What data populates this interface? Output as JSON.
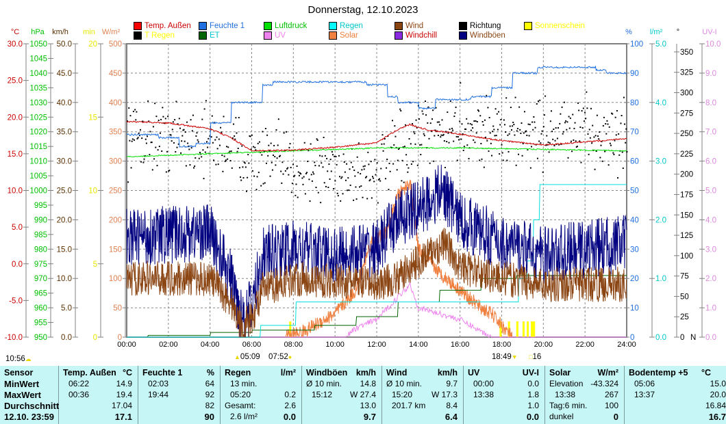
{
  "title": "Donnerstag, 12.10.2023",
  "legend": [
    {
      "label": "Temp. Außen",
      "swatch": "#ff0000",
      "text": "#cc0000"
    },
    {
      "label": "T Regen",
      "swatch": "#000000",
      "text": "#ffff00"
    },
    {
      "label": "Feuchte 1",
      "swatch": "#1f6fe0",
      "text": "#1f6fe0"
    },
    {
      "label": "ET",
      "swatch": "#006400",
      "text": "#00c8c8"
    },
    {
      "label": "Luftdruck",
      "swatch": "#00e000",
      "text": "#00c000"
    },
    {
      "label": "UV",
      "swatch": "#ee82ee",
      "text": "#ee82ee"
    },
    {
      "label": "Regen",
      "swatch": "#00ffff",
      "text": "#00c8c8"
    },
    {
      "label": "Solar",
      "swatch": "#f08040",
      "text": "#f08040"
    },
    {
      "label": "Wind",
      "swatch": "#8b4513",
      "text": "#8b4513"
    },
    {
      "label": "Windchill",
      "swatch": "#8a2be2",
      "text": "#cc0000"
    },
    {
      "label": "Richtung",
      "swatch": "#000000",
      "text": "#000000"
    },
    {
      "label": "Windböen",
      "swatch": "#000080",
      "text": "#8b4513"
    },
    {
      "label": "Sonnenschein",
      "swatch": "#ffff00",
      "text": "#ffff00"
    }
  ],
  "chart_data": {
    "type": "line",
    "title": "Donnerstag, 12.10.2023",
    "x_range_hours": [
      0,
      24
    ],
    "x_ticks": [
      "00:00",
      "02:00",
      "04:00",
      "06:00",
      "08:00",
      "10:00",
      "12:00",
      "14:00",
      "16:00",
      "18:00",
      "20:00",
      "22:00",
      "24:00"
    ],
    "axes": [
      {
        "id": "temp",
        "unit": "°C",
        "min": -10,
        "max": 30,
        "step": 5,
        "dec": 1,
        "color": "#cc0000",
        "side": "left"
      },
      {
        "id": "hpa",
        "unit": "hPa",
        "min": 950,
        "max": 1050,
        "step": 5,
        "dec": 0,
        "color": "#00c000",
        "side": "left"
      },
      {
        "id": "kmh",
        "unit": "km/h",
        "min": 0,
        "max": 50,
        "step": 5,
        "dec": 1,
        "color": "#5a3000",
        "side": "left"
      },
      {
        "id": "min",
        "unit": "min",
        "min": 0,
        "max": 20,
        "step": 5,
        "dec": 0,
        "color": "#e8e800",
        "side": "left"
      },
      {
        "id": "wm2",
        "unit": "W/m²",
        "min": 0,
        "max": 500,
        "step": 50,
        "dec": 0,
        "color": "#e08050",
        "side": "left"
      },
      {
        "id": "pct",
        "unit": "%",
        "min": 0,
        "max": 100,
        "step": 10,
        "dec": 0,
        "color": "#1f6fe0",
        "side": "right"
      },
      {
        "id": "lm2",
        "unit": "l/m²",
        "min": 0,
        "max": 5,
        "step": 1,
        "dec": 1,
        "color": "#00c8c8",
        "side": "right"
      },
      {
        "id": "deg",
        "unit": "°",
        "min": 0,
        "max": 360,
        "step": 25,
        "dec": 0,
        "color": "#000000",
        "side": "right",
        "tick_max": 350,
        "extra": "N"
      },
      {
        "id": "uv",
        "unit": "UV-I",
        "min": 0,
        "max": 10,
        "step": 1,
        "dec": 1,
        "color": "#dd88dd",
        "side": "right"
      }
    ],
    "series": [
      {
        "name": "Temp. Außen",
        "axis": "temp",
        "color": "#cc0000",
        "noise": 0.1,
        "points": [
          [
            0,
            19.4
          ],
          [
            2,
            19.2
          ],
          [
            4,
            18.4
          ],
          [
            5,
            17.2
          ],
          [
            6,
            15.4
          ],
          [
            8,
            15.5
          ],
          [
            10,
            15.9
          ],
          [
            12,
            16.5
          ],
          [
            13,
            18.3
          ],
          [
            13.6,
            19.0
          ],
          [
            14.5,
            18.2
          ],
          [
            15.5,
            17.9
          ],
          [
            17,
            17.2
          ],
          [
            18,
            16.8
          ],
          [
            20,
            16.2
          ],
          [
            22,
            16.6
          ],
          [
            24,
            17.1
          ]
        ]
      },
      {
        "name": "Luftdruck",
        "axis": "hpa",
        "color": "#00e000",
        "noise": 0.2,
        "points": [
          [
            0,
            1011.5
          ],
          [
            4,
            1012.5
          ],
          [
            8,
            1013.5
          ],
          [
            12,
            1014.5
          ],
          [
            16,
            1014.5
          ],
          [
            20,
            1014
          ],
          [
            24,
            1013.5
          ]
        ]
      },
      {
        "name": "Feuchte 1",
        "axis": "pct",
        "color": "#1f6fe0",
        "noise": 0.3,
        "step": true,
        "points": [
          [
            0,
            69
          ],
          [
            1.5,
            68
          ],
          [
            2.5,
            65
          ],
          [
            3.3,
            66
          ],
          [
            4,
            73
          ],
          [
            5,
            80
          ],
          [
            6.5,
            86
          ],
          [
            7,
            87
          ],
          [
            11.5,
            86
          ],
          [
            12.5,
            82
          ],
          [
            13,
            80
          ],
          [
            14,
            78
          ],
          [
            14.8,
            81
          ],
          [
            16.5,
            82
          ],
          [
            17.5,
            85
          ],
          [
            18.5,
            90
          ],
          [
            19.7,
            92
          ],
          [
            22.5,
            91
          ],
          [
            23,
            90
          ],
          [
            24,
            90
          ]
        ]
      },
      {
        "name": "Regen",
        "axis": "lm2",
        "color": "#00e0e0",
        "noise": 0,
        "step": true,
        "points": [
          [
            0,
            0
          ],
          [
            6.3,
            0
          ],
          [
            6.4,
            0.2
          ],
          [
            7,
            0.2
          ],
          [
            8,
            0.2
          ],
          [
            8.1,
            0.6
          ],
          [
            18.7,
            0.6
          ],
          [
            18.8,
            1.0
          ],
          [
            19.2,
            1.3
          ],
          [
            19.5,
            2.0
          ],
          [
            19.8,
            2.6
          ],
          [
            24,
            2.6
          ]
        ]
      },
      {
        "name": "ET",
        "axis": "lm2",
        "color": "#006400",
        "noise": 0,
        "step": true,
        "points": [
          [
            0,
            0
          ],
          [
            1,
            0.03
          ],
          [
            4,
            0.08
          ],
          [
            6,
            0.12
          ],
          [
            9,
            0.2
          ],
          [
            11,
            0.35
          ],
          [
            13,
            0.6
          ],
          [
            15,
            0.8
          ],
          [
            17,
            1.0
          ],
          [
            18.7,
            1.05
          ],
          [
            24,
            1.1
          ]
        ]
      },
      {
        "name": "Solar",
        "axis": "wm2",
        "color": "#f08040",
        "noise": 12,
        "points": [
          [
            0,
            0
          ],
          [
            7.6,
            0
          ],
          [
            8.5,
            10
          ],
          [
            10,
            40
          ],
          [
            11,
            80
          ],
          [
            11.7,
            160
          ],
          [
            12.5,
            180
          ],
          [
            13,
            240
          ],
          [
            13.6,
            265
          ],
          [
            14,
            150
          ],
          [
            14.5,
            130
          ],
          [
            15,
            110
          ],
          [
            16,
            80
          ],
          [
            17,
            50
          ],
          [
            17.5,
            40
          ],
          [
            18,
            20
          ],
          [
            18.5,
            0
          ],
          [
            24,
            0
          ]
        ]
      },
      {
        "name": "UV",
        "axis": "uv",
        "color": "#ee82ee",
        "noise": 0.1,
        "points": [
          [
            0,
            0
          ],
          [
            10.5,
            0
          ],
          [
            11,
            0.3
          ],
          [
            12,
            0.6
          ],
          [
            13.6,
            1.8
          ],
          [
            14,
            1.0
          ],
          [
            15,
            0.8
          ],
          [
            16,
            0.6
          ],
          [
            17,
            0.2
          ],
          [
            17.5,
            0
          ],
          [
            24,
            0
          ]
        ]
      },
      {
        "name": "Wind",
        "axis": "kmh",
        "color": "#8b4513",
        "noise": 3,
        "points": [
          [
            0,
            10
          ],
          [
            4,
            10
          ],
          [
            5,
            6
          ],
          [
            5.5,
            2
          ],
          [
            6,
            3
          ],
          [
            6.5,
            8
          ],
          [
            8,
            10
          ],
          [
            12,
            9
          ],
          [
            13,
            10
          ],
          [
            14,
            13
          ],
          [
            15.3,
            16
          ],
          [
            16,
            12
          ],
          [
            18,
            10
          ],
          [
            20,
            9
          ],
          [
            22,
            9
          ],
          [
            24,
            9
          ]
        ]
      },
      {
        "name": "Windböen",
        "axis": "kmh",
        "color": "#000080",
        "noise": 5,
        "points": [
          [
            0,
            17
          ],
          [
            4,
            18
          ],
          [
            5,
            10
          ],
          [
            5.5,
            4
          ],
          [
            6,
            5
          ],
          [
            6.5,
            14
          ],
          [
            8,
            15
          ],
          [
            10,
            14
          ],
          [
            12,
            15
          ],
          [
            13,
            20
          ],
          [
            14,
            22
          ],
          [
            15.2,
            25
          ],
          [
            16,
            20
          ],
          [
            18,
            16
          ],
          [
            20,
            14
          ],
          [
            22,
            15
          ],
          [
            24,
            16
          ]
        ]
      }
    ],
    "scatter": {
      "name": "Richtung",
      "axis": "deg",
      "color": "#000000",
      "spread": 30,
      "points": [
        [
          0,
          250
        ],
        [
          3,
          245
        ],
        [
          5,
          235
        ],
        [
          6,
          220
        ],
        [
          8,
          210
        ],
        [
          10,
          205
        ],
        [
          11.5,
          200
        ],
        [
          12.5,
          215
        ],
        [
          14,
          245
        ],
        [
          16,
          260
        ],
        [
          18,
          250
        ],
        [
          20,
          255
        ],
        [
          22,
          250
        ],
        [
          24,
          245
        ]
      ]
    },
    "sunshine": {
      "color": "#ffff00",
      "ranges": [
        [
          7.8,
          7.9
        ],
        [
          17.9,
          18.0
        ],
        [
          18.3,
          18.4
        ],
        [
          18.7,
          18.8
        ],
        [
          19.0,
          19.1
        ],
        [
          19.2,
          19.3
        ],
        [
          19.4,
          19.6
        ]
      ]
    }
  },
  "events": [
    {
      "label": "10:56",
      "icon": "moon-icon"
    },
    {
      "label": "05:09",
      "icon": "sunrise-icon"
    },
    {
      "label": "07:52",
      "icon": "sun-icon"
    },
    {
      "label": "18:49",
      "icon": "sunset-icon"
    },
    {
      "label": "16",
      "icon": "moonphase-icon"
    }
  ],
  "table": [
    {
      "head": "Sensor",
      "unit": "",
      "rows": [
        [
          "MinWert",
          ""
        ],
        [
          "MaxWert",
          ""
        ],
        [
          "Durchschnitt",
          ""
        ],
        [
          "12.10. 23:59",
          ""
        ]
      ],
      "boldRows": true
    },
    {
      "head": "Temp. Außen",
      "unit": "°C",
      "rows": [
        [
          "06:22",
          "14.9"
        ],
        [
          "00:36",
          "19.4"
        ],
        [
          "",
          "17.04"
        ],
        [
          "",
          "17.1"
        ]
      ]
    },
    {
      "head": "Feuchte 1",
      "unit": "%",
      "rows": [
        [
          "02:03",
          "64"
        ],
        [
          "19:44",
          "92"
        ],
        [
          "",
          "82"
        ],
        [
          "",
          "90"
        ]
      ]
    },
    {
      "head": "Regen",
      "unit": "l/m²",
      "rows": [
        [
          "13 min.",
          ""
        ],
        [
          "05:20",
          "0.2"
        ],
        [
          "Gesamt:",
          "2.6"
        ],
        [
          "2.6 l/m²",
          "0.0"
        ]
      ]
    },
    {
      "head": "Windböen",
      "unit": "km/h",
      "rows": [
        [
          "Ø 10 min.",
          "14.8"
        ],
        [
          "15:12",
          "W 27.4"
        ],
        [
          "",
          "13.0"
        ],
        [
          "",
          "9.7"
        ]
      ]
    },
    {
      "head": "Wind",
      "unit": "km/h",
      "rows": [
        [
          "Ø 10 min.",
          "9.7"
        ],
        [
          "15:20",
          "W 17.3"
        ],
        [
          "201.7 km",
          "8.4"
        ],
        [
          "",
          "6.4"
        ]
      ]
    },
    {
      "head": "UV",
      "unit": "UV-I",
      "rows": [
        [
          "00:00",
          "0.0"
        ],
        [
          "13:38",
          "1.8"
        ],
        [
          "",
          "1.0"
        ],
        [
          "",
          "0.0"
        ]
      ]
    },
    {
      "head": "Solar",
      "unit": "W/m²",
      "rows": [
        [
          "Elevation",
          "-43.324"
        ],
        [
          "13:38",
          "267"
        ],
        [
          "Tag:6 min.",
          "100"
        ],
        [
          "dunkel",
          "0"
        ]
      ]
    },
    {
      "head": "Bodentemp +5",
      "unit": "°C",
      "rows": [
        [
          "05:06",
          "15.0"
        ],
        [
          "13:37",
          "20.0"
        ],
        [
          "",
          "16.84"
        ],
        [
          "",
          "16.7"
        ]
      ]
    }
  ]
}
